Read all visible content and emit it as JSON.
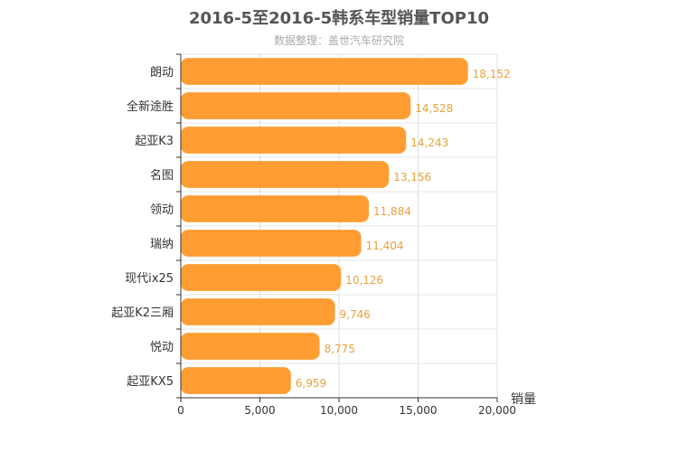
{
  "chart_data": {
    "type": "bar",
    "orientation": "horizontal",
    "title": "2016-5至2016-5韩系车型销量TOP10",
    "subtitle": "数据整理：盖世汽车研究院",
    "categories": [
      "朗动",
      "全新途胜",
      "起亚K3",
      "名图",
      "领动",
      "瑞纳",
      "现代ix25",
      "起亚K2三厢",
      "悦动",
      "起亚KX5"
    ],
    "values": [
      18152,
      14528,
      14243,
      13156,
      11884,
      11404,
      10126,
      9746,
      8775,
      6959
    ],
    "value_labels": [
      "18,152",
      "14,528",
      "14,243",
      "13,156",
      "11,884",
      "11,404",
      "10,126",
      "9,746",
      "8,775",
      "6,959"
    ],
    "xlabel": "销量",
    "ylabel": "",
    "xlim": [
      0,
      20000
    ],
    "xticks": [
      0,
      5000,
      10000,
      15000,
      20000
    ],
    "xtick_labels": [
      "0",
      "5,000",
      "10,000",
      "15,000",
      "20,000"
    ],
    "grid": true,
    "bar_color": "#ff9d33",
    "label_color": "#e8a23c"
  }
}
